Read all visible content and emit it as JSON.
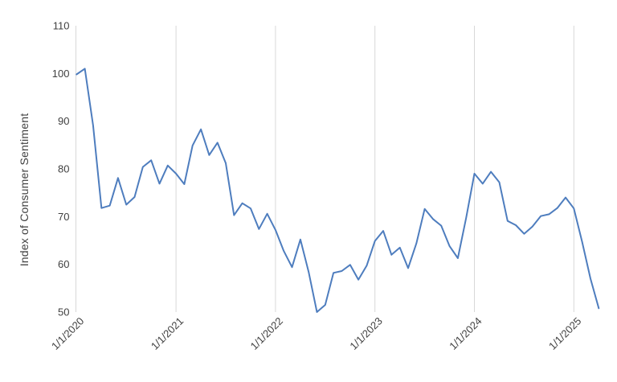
{
  "page": {
    "background_color": "#ffffff"
  },
  "chart_data": {
    "type": "line",
    "title": "",
    "xlabel": "",
    "ylabel": "Index of Consumer Sentiment",
    "ylim": [
      50,
      110
    ],
    "y_ticks": [
      110,
      100,
      90,
      80,
      70,
      60,
      50
    ],
    "x_tick_labels": [
      "1/1/2020",
      "1/1/2021",
      "1/1/2022",
      "1/1/2023",
      "1/1/2024",
      "1/1/2025"
    ],
    "grid": "vertical-year-gridlines-only",
    "legend": "none",
    "line_color": "#4e7dbe",
    "axis_color": "#d8d8d8",
    "label_color": "#404040",
    "series": [
      {
        "name": "Index of Consumer Sentiment",
        "x": [
          "1/2020",
          "2/2020",
          "3/2020",
          "4/2020",
          "5/2020",
          "6/2020",
          "7/2020",
          "8/2020",
          "9/2020",
          "10/2020",
          "11/2020",
          "12/2020",
          "1/2021",
          "2/2021",
          "3/2021",
          "4/2021",
          "5/2021",
          "6/2021",
          "7/2021",
          "8/2021",
          "9/2021",
          "10/2021",
          "11/2021",
          "12/2021",
          "1/2022",
          "2/2022",
          "3/2022",
          "4/2022",
          "5/2022",
          "6/2022",
          "7/2022",
          "8/2022",
          "9/2022",
          "10/2022",
          "11/2022",
          "12/2022",
          "1/2023",
          "2/2023",
          "3/2023",
          "4/2023",
          "5/2023",
          "6/2023",
          "7/2023",
          "8/2023",
          "9/2023",
          "10/2023",
          "11/2023",
          "12/2023",
          "1/2024",
          "2/2024",
          "3/2024",
          "4/2024",
          "5/2024",
          "6/2024",
          "7/2024",
          "8/2024",
          "9/2024",
          "10/2024",
          "11/2024",
          "12/2024",
          "1/2025",
          "2/2025",
          "3/2025",
          "4/2025"
        ],
        "values": [
          99.8,
          101.0,
          89.1,
          71.8,
          72.3,
          78.1,
          72.5,
          74.1,
          80.4,
          81.8,
          76.9,
          80.7,
          79.0,
          76.8,
          84.9,
          88.3,
          82.9,
          85.5,
          81.2,
          70.3,
          72.8,
          71.7,
          67.4,
          70.6,
          67.2,
          62.8,
          59.4,
          65.2,
          58.4,
          50.0,
          51.5,
          58.2,
          58.6,
          59.9,
          56.8,
          59.7,
          64.9,
          67.0,
          62.0,
          63.5,
          59.2,
          64.4,
          71.6,
          69.5,
          68.1,
          63.8,
          61.3,
          69.7,
          79.0,
          76.9,
          79.4,
          77.2,
          69.1,
          68.2,
          66.4,
          67.9,
          70.1,
          70.5,
          71.8,
          74.0,
          71.7,
          64.7,
          57.0,
          50.8
        ]
      }
    ]
  }
}
